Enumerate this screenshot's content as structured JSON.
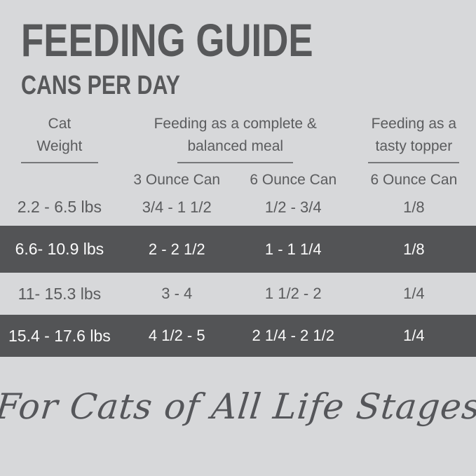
{
  "title": "FEEDING GUIDE",
  "subtitle": "CANS PER DAY",
  "table": {
    "headers": {
      "weight": {
        "line1": "Cat",
        "line2": "Weight"
      },
      "complete_meal": {
        "line1": "Feeding as a complete &",
        "line2": "balanced meal"
      },
      "tasty_topper": {
        "line1": "Feeding as a",
        "line2": "tasty topper"
      }
    },
    "sub_headers": {
      "meal_3oz": "3 Ounce Can",
      "meal_6oz": "6 Ounce Can",
      "topper_6oz": "6 Ounce Can"
    },
    "rows": [
      {
        "weight": "2.2 - 6.5 lbs",
        "can3": "3/4 - 1 1/2",
        "can6": "1/2 - 3/4",
        "topper": "1/8"
      },
      {
        "weight": "6.6- 10.9 lbs",
        "can3": "2 - 2 1/2",
        "can6": "1 - 1 1/4",
        "topper": "1/8"
      },
      {
        "weight": "11- 15.3 lbs",
        "can3": "3 - 4",
        "can6": "1 1/2 - 2",
        "topper": "1/4"
      },
      {
        "weight": "15.4 - 17.6 lbs",
        "can3": "4 1/2 - 5",
        "can6": "2 1/4 - 2 1/2",
        "topper": "1/4"
      }
    ]
  },
  "footer": {
    "tagline": "For Cats of All Life Stages"
  },
  "colors": {
    "background": "#d7d8da",
    "dark_band": "#535456",
    "text": "#58595b",
    "band_text": "#fbfbfb"
  }
}
